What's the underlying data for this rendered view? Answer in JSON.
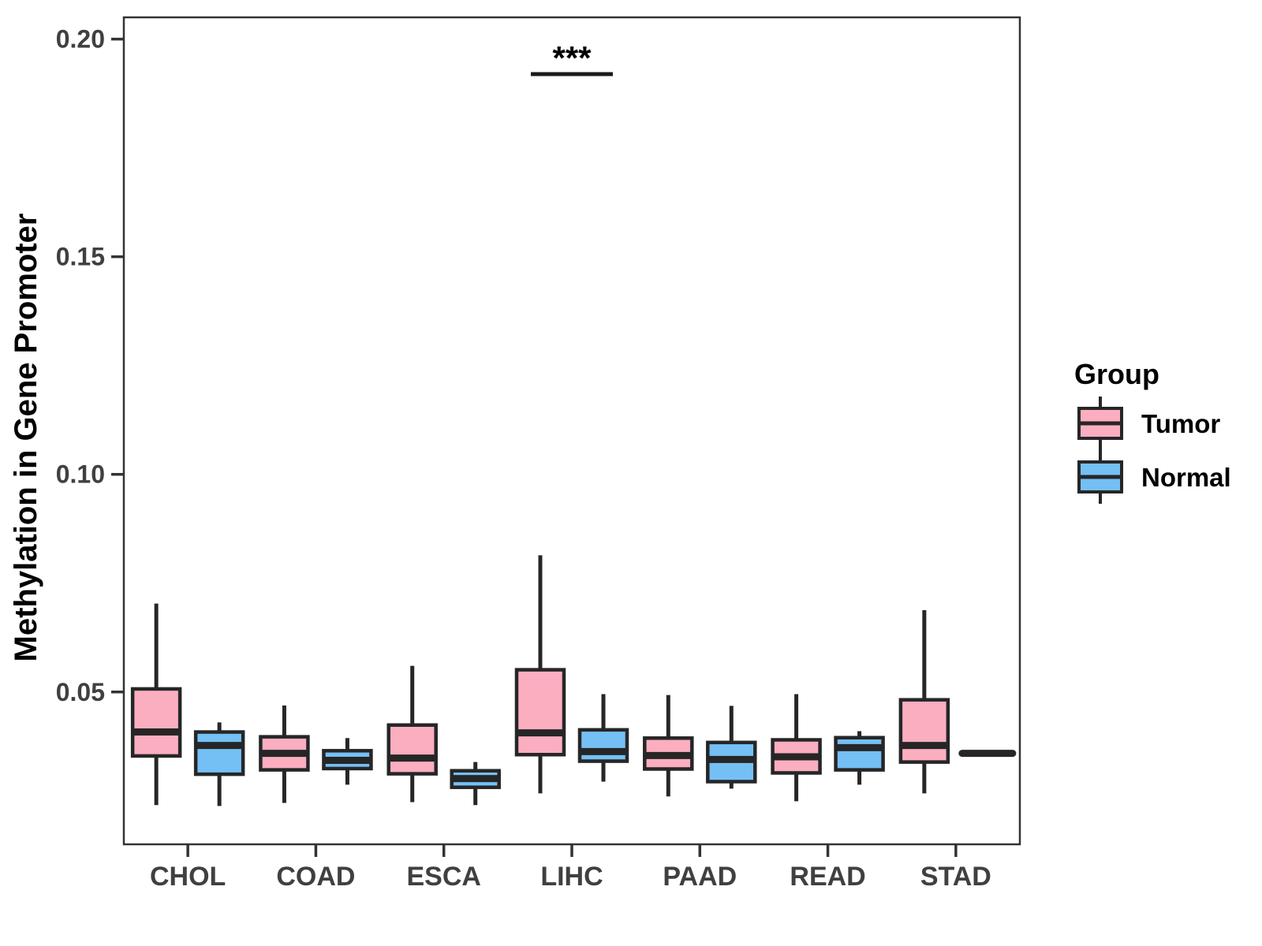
{
  "figure": {
    "ylabel": "Methylation in Gene Promoter",
    "significance_label": "***",
    "legend": {
      "title": "Group",
      "items": [
        {
          "label": "Tumor",
          "color": "#FBAEC0"
        },
        {
          "label": "Normal",
          "color": "#74C0F5"
        }
      ]
    }
  },
  "chart_data": {
    "type": "boxplot",
    "title": "",
    "xlabel": "",
    "ylabel": "Methylation in Gene Promoter",
    "categories": [
      "CHOL",
      "COAD",
      "ESCA",
      "LIHC",
      "PAAD",
      "READ",
      "STAD"
    ],
    "groups": [
      "Tumor",
      "Normal"
    ],
    "group_colors": {
      "Tumor": "#FBAEC0",
      "Normal": "#74C0F5"
    },
    "ylim": [
      0.015,
      0.205
    ],
    "yticks": [
      0.05,
      0.1,
      0.15,
      0.2
    ],
    "ytick_labels": [
      "0.05",
      "0.10",
      "0.15",
      "0.20"
    ],
    "grid": false,
    "legend_position": "right",
    "series": [
      {
        "name": "Tumor",
        "color": "#FBAEC0",
        "boxes": [
          {
            "category": "CHOL",
            "whisker_low": 0.024,
            "q1": 0.0353,
            "median": 0.0408,
            "q3": 0.0507,
            "whisker_high": 0.0703
          },
          {
            "category": "COAD",
            "whisker_low": 0.0245,
            "q1": 0.0321,
            "median": 0.0359,
            "q3": 0.0397,
            "whisker_high": 0.0469
          },
          {
            "category": "ESCA",
            "whisker_low": 0.0247,
            "q1": 0.0312,
            "median": 0.0348,
            "q3": 0.0424,
            "whisker_high": 0.056
          },
          {
            "category": "LIHC",
            "whisker_low": 0.0267,
            "q1": 0.0356,
            "median": 0.0406,
            "q3": 0.0551,
            "whisker_high": 0.0814
          },
          {
            "category": "PAAD",
            "whisker_low": 0.026,
            "q1": 0.0323,
            "median": 0.0354,
            "q3": 0.0394,
            "whisker_high": 0.0493
          },
          {
            "category": "READ",
            "whisker_low": 0.0249,
            "q1": 0.0314,
            "median": 0.0351,
            "q3": 0.039,
            "whisker_high": 0.0495
          },
          {
            "category": "STAD",
            "whisker_low": 0.0267,
            "q1": 0.0339,
            "median": 0.0377,
            "q3": 0.0482,
            "whisker_high": 0.0688
          }
        ]
      },
      {
        "name": "Normal",
        "color": "#74C0F5",
        "boxes": [
          {
            "category": "CHOL",
            "whisker_low": 0.0238,
            "q1": 0.0311,
            "median": 0.0377,
            "q3": 0.0408,
            "whisker_high": 0.043
          },
          {
            "category": "COAD",
            "whisker_low": 0.0287,
            "q1": 0.0324,
            "median": 0.0343,
            "q3": 0.0365,
            "whisker_high": 0.0394
          },
          {
            "category": "ESCA",
            "whisker_low": 0.024,
            "q1": 0.0281,
            "median": 0.0301,
            "q3": 0.0319,
            "whisker_high": 0.0339
          },
          {
            "category": "LIHC",
            "whisker_low": 0.0294,
            "q1": 0.0341,
            "median": 0.0363,
            "q3": 0.0413,
            "whisker_high": 0.0495
          },
          {
            "category": "PAAD",
            "whisker_low": 0.0278,
            "q1": 0.0294,
            "median": 0.0345,
            "q3": 0.0384,
            "whisker_high": 0.0468
          },
          {
            "category": "READ",
            "whisker_low": 0.0287,
            "q1": 0.0321,
            "median": 0.0372,
            "q3": 0.0395,
            "whisker_high": 0.041
          },
          {
            "category": "STAD",
            "whisker_low": 0.0359,
            "q1": 0.0359,
            "median": 0.0359,
            "q3": 0.0359,
            "whisker_high": 0.0359,
            "degenerate": true
          }
        ]
      }
    ],
    "annotations": [
      {
        "text": "***",
        "category": "LIHC",
        "line_y": 0.192,
        "text_y": 0.1975
      }
    ]
  },
  "style": {
    "line_color": "#262626",
    "axis_text_color": "#404040",
    "panel_border_color": "#333333"
  }
}
